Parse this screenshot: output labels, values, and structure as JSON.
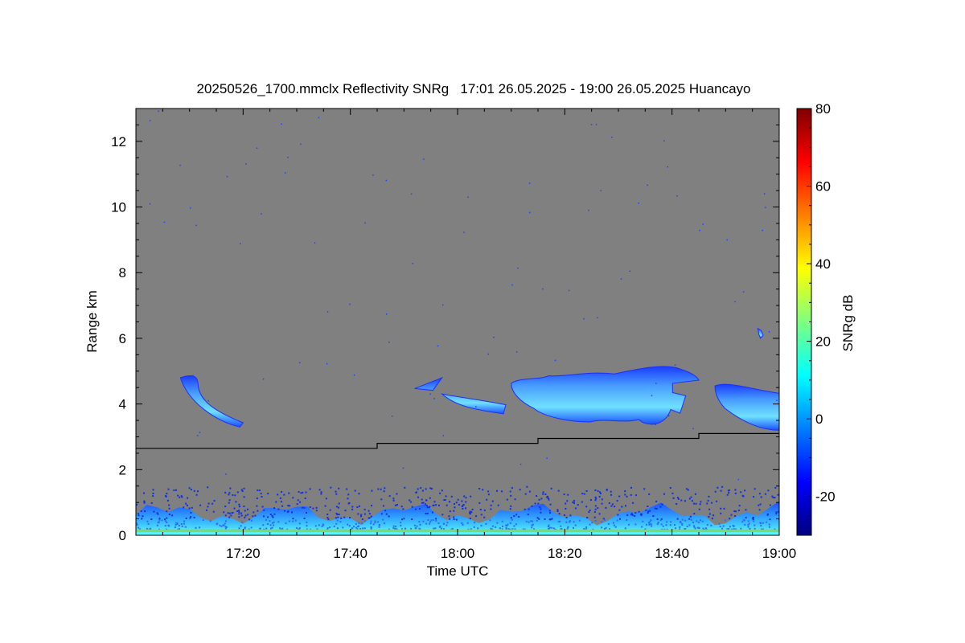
{
  "chart_data": {
    "type": "heatmap",
    "title": "20250526_1700.mmclx Reflectivity SNRg   17:01 26.05.2025 - 19:00 26.05.2025 Huancayo",
    "xlabel": "Time UTC",
    "ylabel": "Range km",
    "xlim": [
      "17:00",
      "19:00"
    ],
    "ylim": [
      0,
      13
    ],
    "x_ticks": [
      "17:20",
      "17:40",
      "18:00",
      "18:20",
      "18:40",
      "19:00"
    ],
    "y_ticks": [
      0,
      2,
      4,
      6,
      8,
      10,
      12
    ],
    "background_color": "#808080",
    "colorbar": {
      "label": "SNRg dB",
      "range": [
        -30,
        80
      ],
      "ticks": [
        -20,
        0,
        20,
        40,
        60,
        80
      ],
      "colormap": [
        "#00007f",
        "#0000ff",
        "#007fff",
        "#00ffff",
        "#7fff7f",
        "#ffff00",
        "#ff7f00",
        "#ff0000",
        "#7f0000"
      ]
    },
    "line_series": [
      {
        "color": "#000000",
        "points": [
          [
            "17:00",
            2.65
          ],
          [
            "17:45",
            2.65
          ],
          [
            "17:45",
            2.8
          ],
          [
            "18:15",
            2.8
          ],
          [
            "18:15",
            2.95
          ],
          [
            "18:45",
            2.95
          ],
          [
            "18:45",
            3.1
          ],
          [
            "19:00",
            3.1
          ]
        ]
      }
    ],
    "features": [
      {
        "kind": "echo_patch",
        "time_start": "17:08",
        "time_end": "17:20",
        "range_km": [
          3.3,
          4.9
        ],
        "snr_db": [
          -20,
          -5
        ]
      },
      {
        "kind": "echo_patch",
        "time_start": "17:52",
        "time_end": "18:09",
        "range_km": [
          3.7,
          4.8
        ],
        "snr_db": [
          -20,
          -10
        ]
      },
      {
        "kind": "echo_patch",
        "time_start": "18:10",
        "time_end": "18:45",
        "range_km": [
          3.3,
          5.2
        ],
        "snr_db": [
          -20,
          10
        ]
      },
      {
        "kind": "echo_patch",
        "time_start": "18:48",
        "time_end": "19:00",
        "range_km": [
          3.2,
          4.7
        ],
        "snr_db": [
          -20,
          8
        ]
      },
      {
        "kind": "echo_patch",
        "time_start": "18:56",
        "time_end": "18:57",
        "range_km": [
          6.0,
          6.3
        ],
        "snr_db": [
          -20,
          -15
        ]
      },
      {
        "kind": "boundary_layer",
        "time_start": "17:00",
        "time_end": "19:00",
        "range_km": [
          0,
          1.5
        ],
        "snr_db": [
          -25,
          15
        ]
      }
    ]
  }
}
